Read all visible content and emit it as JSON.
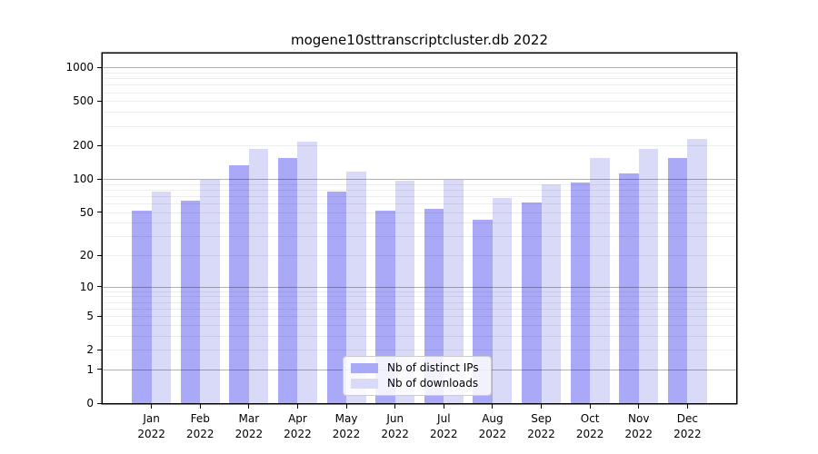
{
  "chart_data": {
    "type": "bar",
    "title": "mogene10sttranscriptcluster.db 2022",
    "categories": [
      "Jan",
      "Feb",
      "Mar",
      "Apr",
      "May",
      "Jun",
      "Jul",
      "Aug",
      "Sep",
      "Oct",
      "Nov",
      "Dec"
    ],
    "year": "2022",
    "series": [
      {
        "name": "Nb of distinct IPs",
        "color": "#a9a9f7",
        "values": [
          52,
          64,
          133,
          155,
          77,
          52,
          54,
          43,
          61,
          93,
          112,
          156
        ]
      },
      {
        "name": "Nb of downloads",
        "color": "#d9d9f8",
        "values": [
          77,
          98,
          186,
          215,
          116,
          96,
          98,
          67,
          90,
          155,
          186,
          228
        ]
      }
    ],
    "xlabel": "",
    "ylabel": "",
    "y_scale": "log1p",
    "ylim": [
      0,
      1335
    ],
    "y_ticks": [
      0,
      1,
      2,
      5,
      10,
      20,
      50,
      100,
      200,
      500,
      1000
    ],
    "y_major_gridlines": [
      1,
      10,
      100,
      1000
    ],
    "grid": true,
    "legend_position": "bottom-center"
  },
  "colors": {
    "background": "#ffffff",
    "frame": "#000000",
    "major_grid": "rgba(0,0,0,0.30)",
    "minor_grid": "rgba(0,0,0,0.065)",
    "legend_border": "#cccccc",
    "legend_background": "rgba(255,255,255,0.85)",
    "text": "#000000"
  }
}
